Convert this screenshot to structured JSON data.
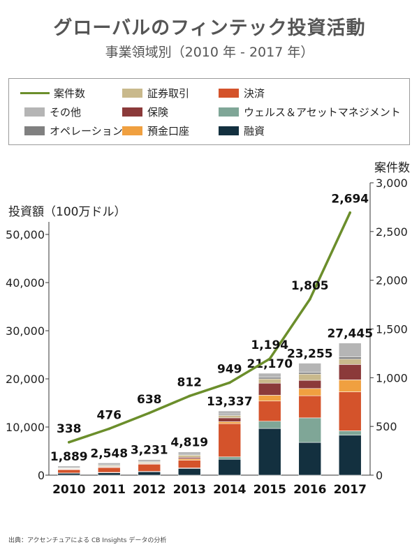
{
  "title": "グローバルのフィンテック投資活動",
  "subtitle": "事業領域別（2010 年 - 2017 年）",
  "source": "出典：アクセンチュアによる CB Insights データの分析",
  "legend": [
    {
      "label": "案件数",
      "kind": "line",
      "color": "#6b8e2b"
    },
    {
      "label": "証券取引",
      "kind": "box",
      "color": "#c9b98c"
    },
    {
      "label": "決済",
      "kind": "box",
      "color": "#d4532b"
    },
    {
      "label": "その他",
      "kind": "box",
      "color": "#b5b5b5"
    },
    {
      "label": "保険",
      "kind": "box",
      "color": "#8b3a3a"
    },
    {
      "label": "ウェルス＆アセットマネジメント",
      "kind": "box",
      "color": "#7fa697"
    },
    {
      "label": "オペレーション",
      "kind": "box",
      "color": "#808080"
    },
    {
      "label": "預金口座",
      "kind": "box",
      "color": "#f0a040"
    },
    {
      "label": "融資",
      "kind": "box",
      "color": "#13303f"
    }
  ],
  "chart_data": {
    "type": "bar",
    "stacked": true,
    "categories": [
      "2010",
      "2011",
      "2012",
      "2013",
      "2014",
      "2015",
      "2016",
      "2017"
    ],
    "ylabel": "投資額（100万ドル）",
    "ylim": [
      0,
      50000
    ],
    "yticks": [
      "0",
      "10,000",
      "20,000",
      "30,000",
      "40,000",
      "50,000"
    ],
    "y2label": "案件数",
    "y2lim": [
      0,
      3000
    ],
    "y2ticks": [
      "0",
      "500",
      "1,000",
      "1,500",
      "2,000",
      "2,500",
      "3,000"
    ],
    "totals_labels": [
      "1,889",
      "2,548",
      "3,231",
      "4,819",
      "13,337",
      "21,170",
      "23,255",
      "27,445"
    ],
    "totals": [
      1889,
      2548,
      3231,
      4819,
      13337,
      21170,
      23255,
      27445
    ],
    "series": [
      {
        "name": "融資",
        "color": "#13303f",
        "values": [
          400,
          500,
          700,
          1400,
          3300,
          9700,
          6800,
          8300
        ]
      },
      {
        "name": "ウェルス＆アセットマネジメント",
        "color": "#7fa697",
        "values": [
          50,
          80,
          80,
          100,
          500,
          1500,
          5100,
          900
        ]
      },
      {
        "name": "決済",
        "color": "#d4532b",
        "values": [
          700,
          1000,
          1500,
          1600,
          6900,
          4200,
          4600,
          8100
        ]
      },
      {
        "name": "預金口座",
        "color": "#f0a040",
        "values": [
          60,
          90,
          120,
          300,
          400,
          1200,
          1500,
          2500
        ]
      },
      {
        "name": "保険",
        "color": "#8b3a3a",
        "values": [
          90,
          130,
          120,
          300,
          800,
          2500,
          1700,
          3200
        ]
      },
      {
        "name": "証券取引",
        "color": "#c9b98c",
        "values": [
          120,
          210,
          200,
          450,
          500,
          900,
          1300,
          1100
        ]
      },
      {
        "name": "オペレーション",
        "color": "#808080",
        "values": [
          100,
          140,
          141,
          169,
          237,
          370,
          355,
          445
        ]
      },
      {
        "name": "その他",
        "color": "#b5b5b5",
        "values": [
          369,
          398,
          370,
          500,
          700,
          800,
          1900,
          2900
        ]
      }
    ],
    "line": {
      "name": "案件数",
      "color": "#6b8e2b",
      "axis": "right",
      "values": [
        338,
        476,
        638,
        812,
        949,
        1194,
        1805,
        2694
      ],
      "labels": [
        "338",
        "476",
        "638",
        "812",
        "949",
        "1,194",
        "1,805",
        "2,694"
      ]
    }
  }
}
